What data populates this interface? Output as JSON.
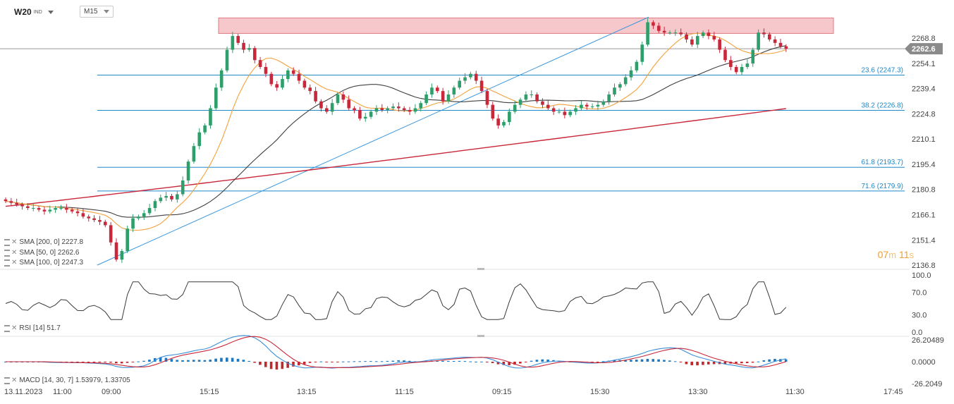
{
  "header": {
    "symbol": "W20",
    "symbol_suffix": "IND",
    "timeframe": "M15"
  },
  "timer": {
    "min": "07",
    "min_unit": "m",
    "sec": "11",
    "sec_unit": "s"
  },
  "legend": {
    "sma200": "SMA [200, 0] 2227.8",
    "sma50": "SMA [50, 0] 2262.6",
    "sma100": "SMA [100, 0] 2247.3",
    "rsi": "RSI [14] 51.7",
    "macd": "MACD [14, 30, 7] 1.53979, 1.33705"
  },
  "colors": {
    "up": "#2e9e6a",
    "down": "#c8283a",
    "sma50": "#f5a03a",
    "sma100": "#404040",
    "sma200": "#c8283a",
    "fib": "#1e88c8",
    "zone": "#f6c8cc",
    "macd_pos": "#1e78c0",
    "macd_neg": "#c0282a"
  },
  "chart_data": {
    "type": "line",
    "instrument": "W20",
    "timeframe": "M15",
    "price_axis_ticks": [
      2268.8,
      2254.1,
      2239.4,
      2224.8,
      2210.1,
      2195.4,
      2180.8,
      2166.1,
      2151.4,
      2136.8
    ],
    "price_axis_labels": [
      "2268.8",
      "2254.1",
      "2239.4",
      "2224.8",
      "2210.1",
      "2195.4",
      "2180.8",
      "2166.1",
      "2151.4",
      "2136.8"
    ],
    "last_price": 2262.6,
    "last_price_label": "2262.6",
    "x_tick_labels": [
      "13.11.2023",
      "11:00",
      "09:00",
      "15:15",
      "13:15",
      "11:15",
      "09:15",
      "15:30",
      "13:30",
      "11:30",
      "17:45"
    ],
    "fib_levels": [
      {
        "label": "23.6 (2247.3)",
        "price": 2247.3
      },
      {
        "label": "38.2 (2226.8)",
        "price": 2226.8
      },
      {
        "label": "61.8 (2193.7)",
        "price": 2193.7
      },
      {
        "label": "71.6 (2179.9)",
        "price": 2179.9
      }
    ],
    "resistance_zone": {
      "low": 2271.5,
      "high": 2280.5
    },
    "trendline": {
      "from": 2136.8,
      "to": 2281
    },
    "close_series": [
      2174,
      2173,
      2172,
      2171,
      2170,
      2170,
      2169,
      2168,
      2169,
      2170,
      2170,
      2169,
      2168,
      2167,
      2165,
      2164,
      2163,
      2162,
      2160,
      2150,
      2140,
      2145,
      2158,
      2164,
      2165,
      2167,
      2170,
      2174,
      2176,
      2177,
      2175,
      2178,
      2186,
      2197,
      2206,
      2214,
      2218,
      2228,
      2240,
      2250,
      2262,
      2270,
      2266,
      2262,
      2263,
      2256,
      2252,
      2248,
      2242,
      2240,
      2245,
      2250,
      2248,
      2244,
      2240,
      2238,
      2232,
      2228,
      2226,
      2231,
      2236,
      2233,
      2228,
      2227,
      2222,
      2223,
      2226,
      2228,
      2227,
      2228,
      2229,
      2228,
      2227,
      2226,
      2228,
      2231,
      2236,
      2240,
      2238,
      2232,
      2236,
      2240,
      2244,
      2246,
      2248,
      2244,
      2238,
      2230,
      2222,
      2218,
      2220,
      2226,
      2230,
      2233,
      2236,
      2236,
      2232,
      2230,
      2228,
      2226,
      2226,
      2224,
      2226,
      2228,
      2230,
      2229,
      2229,
      2230,
      2232,
      2236,
      2240,
      2242,
      2246,
      2250,
      2255,
      2265,
      2278,
      2276,
      2273,
      2272,
      2272,
      2272,
      2271,
      2268,
      2265,
      2270,
      2272,
      2270,
      2268,
      2262,
      2256,
      2252,
      2249,
      2252,
      2254,
      2262,
      2272,
      2271,
      2268,
      2266,
      2264,
      2262.6
    ],
    "sma_200": {
      "start": 2171,
      "end": 2227.8
    },
    "sma_50_end": 2262.6,
    "sma_100_end": 2247.3,
    "rsi": {
      "ticks": [
        100.0,
        70.0,
        30.0,
        0.0
      ],
      "tick_labels": [
        "100.0",
        "70.0",
        "30.0",
        "0.0"
      ],
      "last": 51.7
    },
    "macd": {
      "ticks": [
        26.20489,
        0.0,
        -26.2049
      ],
      "tick_labels": [
        "26.20489",
        "0.0000",
        "-26.2049"
      ],
      "params": [
        14,
        30,
        7
      ],
      "macd": 1.53979,
      "signal": 1.33705
    }
  }
}
